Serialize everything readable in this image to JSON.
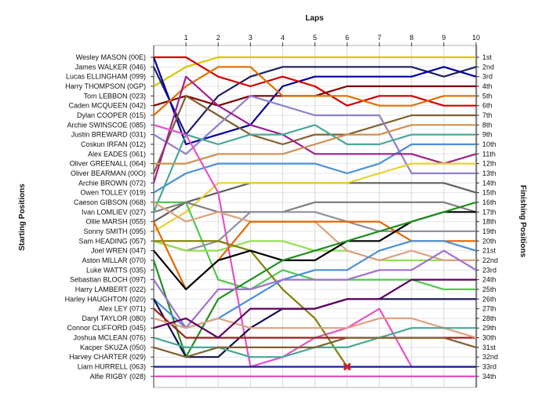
{
  "chart_data": {
    "type": "line",
    "title": "",
    "xlabel": "Laps",
    "ylabel_left": "Starting Positions",
    "ylabel_right": "Finishing Positions",
    "laps": [
      1,
      2,
      3,
      4,
      5,
      6,
      7,
      8,
      9,
      10
    ],
    "xlim": [
      0,
      10
    ],
    "ylim": [
      1,
      34
    ],
    "grid": true,
    "starting_labels": [
      "Wesley MASON (00E)",
      "James WALKER (046)",
      "Lucas ELLINGHAM (099)",
      "Harry THOMPSON (0GP)",
      "Tom LEBBON (023)",
      "Caden MCQUEEN (042)",
      "Dylan COOPER (015)",
      "Archie SWINSCOE (085)",
      "Justin BREWARD (031)",
      "Coskun IRFAN (012)",
      "Alex EADES (061)",
      "Oliver GREENALL (064)",
      "Oliver BEARMAN (00O)",
      "Archie BROWN (072)",
      "Owen TOLLEY (019)",
      "Caeson GIBSON (068)",
      "Ivan LOMLIEV (027)",
      "Ollie MARSH (055)",
      "Sonny SMITH (095)",
      "Sam HEADING (057)",
      "Joel WREN (047)",
      "Aston MILLAR (070)",
      "Luke WATTS (035)",
      "Sebastian BLOCH (097)",
      "Harry LAMBERT (022)",
      "Harley HAUGHTON (020)",
      "Alex LEY (071)",
      "Daryl TAYLOR (080)",
      "Connor CLIFFORD (045)",
      "Joshua MCLEAN (076)",
      "Kacper SKUZA (050)",
      "Harvey CHARTER (029)",
      "Liam HURRELL (063)",
      "Alfie RIGBY (028)"
    ],
    "finishing_labels": [
      "1st",
      "2nd",
      "3rd",
      "4th",
      "5th",
      "6th",
      "7th",
      "8th",
      "9th",
      "10th",
      "11th",
      "12th",
      "13th",
      "14th",
      "15th",
      "16th",
      "17th",
      "18th",
      "19th",
      "20th",
      "21st",
      "22nd",
      "23rd",
      "24th",
      "25th",
      "26th",
      "27th",
      "28th",
      "29th",
      "30th",
      "31st",
      "32nd",
      "33rd",
      "34th"
    ],
    "series": [
      {
        "color": "#d8c800",
        "positions": [
          4,
          2,
          1,
          1,
          1,
          1,
          1,
          1,
          1,
          1,
          1
        ]
      },
      {
        "color": "#202060",
        "positions": [
          2,
          9,
          5,
          3,
          2,
          2,
          2,
          2,
          2,
          3,
          2
        ]
      },
      {
        "color": "#0000a0",
        "positions": [
          1,
          10,
          9,
          8,
          4,
          3,
          3,
          3,
          3,
          2,
          3
        ]
      },
      {
        "color": "#d00000",
        "positions": [
          1,
          1,
          3,
          4,
          3,
          4,
          6,
          5,
          5,
          6,
          6
        ]
      },
      {
        "color": "#800000",
        "positions": [
          6,
          5,
          6,
          5,
          5,
          5,
          4,
          4,
          4,
          4,
          4
        ]
      },
      {
        "color": "#e07000",
        "positions": [
          7,
          4,
          2,
          2,
          5,
          5,
          5,
          6,
          6,
          5,
          5
        ]
      },
      {
        "color": "#806030",
        "positions": [
          13,
          5,
          7,
          9,
          10,
          9,
          9,
          8,
          7,
          7,
          7
        ]
      },
      {
        "color": "#9080c8",
        "positions": [
          9,
          11,
          8,
          5,
          6,
          7,
          7,
          7,
          13,
          13,
          13
        ]
      },
      {
        "color": "#4a90d8",
        "positions": [
          15,
          13,
          12,
          12,
          12,
          12,
          13,
          12,
          10,
          10,
          10
        ]
      },
      {
        "color": "#a02090",
        "positions": [
          14,
          3,
          6,
          8,
          9,
          11,
          11,
          11,
          11,
          12,
          11
        ]
      },
      {
        "color": "#48a898",
        "positions": [
          17,
          9,
          10,
          9,
          9,
          8,
          10,
          10,
          9,
          9,
          9
        ]
      },
      {
        "color": "#d09050",
        "positions": [
          12,
          12,
          11,
          11,
          11,
          10,
          9,
          9,
          8,
          8,
          8
        ]
      },
      {
        "color": "#606060",
        "positions": [
          18,
          16,
          15,
          14,
          14,
          14,
          14,
          14,
          14,
          14,
          15
        ]
      },
      {
        "color": "#e8d030",
        "positions": [
          19,
          17,
          14,
          14,
          14,
          14,
          14,
          13,
          12,
          12,
          12
        ]
      },
      {
        "color": "#50c850",
        "positions": [
          16,
          16,
          24,
          25,
          23,
          24,
          24,
          24,
          24,
          25,
          25
        ]
      },
      {
        "color": "#e850c8",
        "positions": [
          8,
          9,
          15,
          33,
          32,
          30,
          29,
          27,
          33,
          33,
          33
        ]
      },
      {
        "color": "#808080",
        "positions": [
          17,
          16,
          17,
          17,
          17,
          16,
          16,
          16,
          16,
          16,
          17
        ]
      },
      {
        "color": "#9090a0",
        "positions": [
          20,
          21,
          20,
          17,
          17,
          17,
          18,
          19,
          19,
          19,
          19
        ]
      },
      {
        "color": "#90e050",
        "positions": [
          20,
          21,
          21,
          20,
          20,
          21,
          21,
          22,
          22,
          22,
          22
        ]
      },
      {
        "color": "#e0a080",
        "positions": [
          16,
          18,
          17,
          18,
          18,
          18,
          21,
          22,
          21,
          22,
          22
        ]
      },
      {
        "color": "#808000",
        "positions": [
          20,
          20,
          20,
          21,
          25,
          28,
          33,
          33,
          33,
          33,
          33
        ]
      },
      {
        "color": "#e06800",
        "positions": [
          18,
          25,
          22,
          18,
          18,
          18,
          18,
          18,
          20,
          20,
          20
        ]
      },
      {
        "color": "#000000",
        "positions": [
          21,
          25,
          22,
          21,
          22,
          22,
          20,
          20,
          18,
          17,
          17
        ]
      },
      {
        "color": "#209020",
        "positions": [
          22,
          32,
          26,
          24,
          22,
          21,
          20,
          19,
          18,
          17,
          16
        ]
      },
      {
        "color": "#4a90d8",
        "positions": [
          26,
          29,
          28,
          26,
          24,
          23,
          23,
          21,
          20,
          20,
          21
        ]
      },
      {
        "color": "#a070d0",
        "positions": [
          24,
          29,
          25,
          25,
          24,
          24,
          24,
          23,
          23,
          21,
          23
        ]
      },
      {
        "color": "#101050",
        "positions": [
          26,
          32,
          32,
          29,
          27,
          27,
          26,
          26,
          26,
          26,
          26
        ]
      },
      {
        "color": "#a02020",
        "positions": [
          27,
          30,
          30,
          30,
          30,
          30,
          30,
          30,
          30,
          30,
          30
        ]
      },
      {
        "color": "#e0a080",
        "positions": [
          28,
          29,
          28,
          29,
          29,
          29,
          29,
          28,
          28,
          29,
          30
        ]
      },
      {
        "color": "#600060",
        "positions": [
          29,
          28,
          30,
          27,
          27,
          27,
          26,
          26,
          24,
          24,
          24
        ]
      },
      {
        "color": "#48a898",
        "positions": [
          30,
          31,
          31,
          32,
          32,
          31,
          31,
          30,
          29,
          29,
          29
        ]
      },
      {
        "color": "#806030",
        "positions": [
          31,
          32,
          31,
          31,
          31,
          31,
          30,
          30,
          30,
          30,
          31
        ]
      },
      {
        "color": "#2020a0",
        "positions": [
          33,
          33,
          33,
          33,
          33,
          33,
          33,
          33,
          33,
          33,
          33
        ]
      },
      {
        "color": "#e850c8",
        "positions": [
          34,
          34,
          34,
          34,
          34,
          34,
          34,
          34,
          34,
          34,
          34
        ]
      }
    ],
    "retirement_marker": {
      "lap": 6,
      "position": 33,
      "color": "#d02020"
    }
  }
}
